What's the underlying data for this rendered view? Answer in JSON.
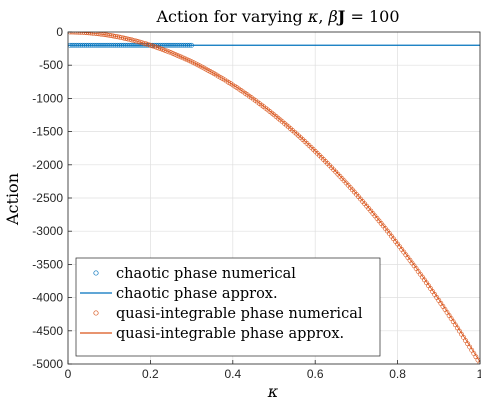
{
  "chart_data": {
    "type": "scatter",
    "title": {
      "prefix": "Action for varying ",
      "kappa": "κ",
      "sep": ", ",
      "beta": "β",
      "J": "J",
      "suffix": " = 100"
    },
    "xlabel": "κ",
    "ylabel": "Action",
    "xlim": [
      0,
      1
    ],
    "ylim": [
      -5000,
      0
    ],
    "xticks": [
      0,
      0.2,
      0.4,
      0.6,
      0.8,
      1
    ],
    "xtick_labels": [
      "0",
      "0.2",
      "0.4",
      "0.6",
      "0.8",
      "1"
    ],
    "yticks": [
      0,
      -500,
      -1000,
      -1500,
      -2000,
      -2500,
      -3000,
      -3500,
      -4000,
      -4500,
      -5000
    ],
    "ytick_labels": [
      "0",
      "-500",
      "-1000",
      "-1500",
      "-2000",
      "-2500",
      "-3000",
      "-3500",
      "-4000",
      "-4500",
      "-5000"
    ],
    "grid": true,
    "legend_position": "bottom-left",
    "series": [
      {
        "name": "chaotic phase numerical",
        "kind": "markers",
        "color": "#0072BD",
        "x_range": [
          0.005,
          0.3
        ],
        "x_step": 0.005,
        "constant_y": -200
      },
      {
        "name": "chaotic phase approx.",
        "kind": "line",
        "color": "#0072BD",
        "x": [
          0,
          1
        ],
        "y": [
          -200,
          -200
        ]
      },
      {
        "name": "quasi-integrable phase numerical",
        "kind": "markers",
        "color": "#D95319",
        "x_range": [
          0.005,
          1
        ],
        "x_step": 0.005,
        "formula": "y = -4990 * x^2"
      },
      {
        "name": "quasi-integrable phase approx.",
        "kind": "line",
        "color": "#D95319",
        "x_range": [
          0,
          1
        ],
        "formula": "y = -4970 * x^2"
      }
    ]
  }
}
